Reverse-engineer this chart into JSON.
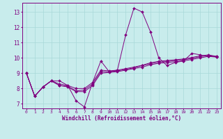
{
  "xlabel": "Windchill (Refroidissement éolien,°C)",
  "background_color": "#c8ecec",
  "line_color": "#800080",
  "grid_color": "#a8d8d8",
  "xlim": [
    -0.5,
    23.5
  ],
  "ylim": [
    6.7,
    13.6
  ],
  "xticks": [
    0,
    1,
    2,
    3,
    4,
    5,
    6,
    7,
    8,
    9,
    10,
    11,
    12,
    13,
    14,
    15,
    16,
    17,
    18,
    19,
    20,
    21,
    22,
    23
  ],
  "yticks": [
    7,
    8,
    9,
    10,
    11,
    12,
    13
  ],
  "series": [
    [
      9.0,
      7.5,
      8.1,
      8.5,
      8.5,
      8.2,
      7.2,
      6.8,
      8.4,
      9.8,
      9.1,
      9.2,
      11.5,
      13.25,
      13.0,
      11.7,
      10.0,
      9.5,
      9.7,
      9.8,
      10.3,
      10.2,
      10.1,
      10.1
    ],
    [
      9.0,
      7.5,
      8.1,
      8.5,
      8.2,
      8.1,
      7.8,
      7.8,
      8.2,
      9.0,
      9.05,
      9.1,
      9.2,
      9.3,
      9.4,
      9.55,
      9.65,
      9.7,
      9.75,
      9.8,
      9.9,
      10.0,
      10.1,
      10.05
    ],
    [
      9.0,
      7.5,
      8.1,
      8.5,
      8.2,
      8.15,
      7.85,
      7.9,
      8.3,
      9.1,
      9.1,
      9.15,
      9.25,
      9.35,
      9.5,
      9.62,
      9.72,
      9.77,
      9.82,
      9.87,
      9.97,
      10.08,
      10.15,
      10.07
    ],
    [
      9.0,
      7.5,
      8.1,
      8.5,
      8.3,
      8.2,
      8.0,
      8.0,
      8.4,
      9.2,
      9.15,
      9.2,
      9.3,
      9.4,
      9.52,
      9.68,
      9.78,
      9.83,
      9.88,
      9.93,
      10.03,
      10.13,
      10.2,
      10.1
    ]
  ]
}
